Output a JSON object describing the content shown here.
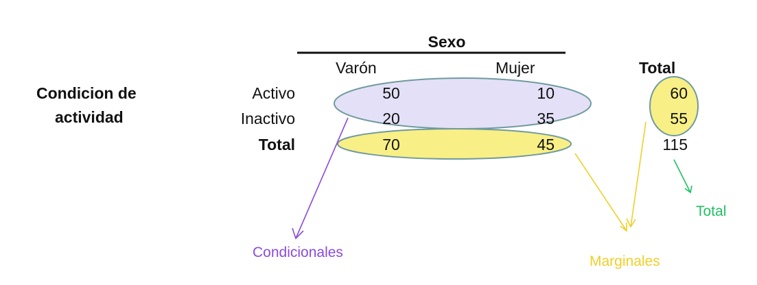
{
  "table": {
    "header_group": "Sexo",
    "columns": [
      "Varón",
      "Mujer"
    ],
    "total_col_label": "Total",
    "row_group_line1": "Condicion de",
    "row_group_line2": "actividad",
    "rows": [
      {
        "label": "Activo",
        "values": [
          "50",
          "10"
        ],
        "total": "60"
      },
      {
        "label": "Inactivo",
        "values": [
          "20",
          "35"
        ],
        "total": "55"
      }
    ],
    "total_row": {
      "label": "Total",
      "values": [
        "70",
        "45"
      ],
      "total": "115"
    }
  },
  "annotations": {
    "conditional": {
      "text": "Condicionales",
      "color": "#8a4bdb"
    },
    "marginal": {
      "text": "Marginales",
      "color": "#f0cf2a"
    },
    "total": {
      "text": "Total",
      "color": "#1fbf63"
    }
  },
  "colors": {
    "conditional_fill": "#e4e0f7",
    "marginal_fill": "#f8ef86",
    "ellipse_stroke": "#6f9a9e"
  }
}
